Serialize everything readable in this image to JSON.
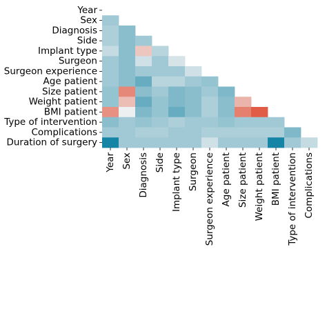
{
  "chart_data": {
    "type": "heatmap",
    "title": "",
    "xlabel": "",
    "ylabel": "",
    "mask": "upper-triangle",
    "row_labels": [
      "Year",
      "Sex",
      "Diagnosis",
      "Side",
      "Implant type",
      "Surgeon",
      "Surgeon experience",
      "Age patient",
      "Size patient",
      "Weight patient",
      "BMI patient",
      "Type of intervention",
      "Complications",
      "Duration of surgery"
    ],
    "col_labels": [
      "Year",
      "Sex",
      "Diagnosis",
      "Side",
      "Implant type",
      "Surgeon",
      "Surgeon experience",
      "Age patient",
      "Size patient",
      "Weight patient",
      "BMI patient",
      "Type of intervention",
      "Complications"
    ],
    "color_scale": {
      "negative": "#0a7ea0",
      "zero": "#f2f2f2",
      "positive": "#de4228",
      "range": [
        -1,
        1
      ]
    },
    "matrix": [
      [],
      [
        -0.35
      ],
      [
        -0.3,
        -0.45
      ],
      [
        -0.3,
        -0.45,
        -0.35
      ],
      [
        -0.2,
        -0.45,
        0.25,
        -0.25
      ],
      [
        -0.35,
        -0.45,
        -0.15,
        -0.35,
        -0.12
      ],
      [
        -0.35,
        -0.45,
        -0.35,
        -0.35,
        -0.35,
        -0.15
      ],
      [
        -0.35,
        -0.45,
        -0.6,
        -0.25,
        -0.25,
        -0.35,
        -0.4
      ],
      [
        -0.4,
        0.6,
        -0.45,
        -0.35,
        -0.5,
        -0.45,
        -0.35,
        -0.5
      ],
      [
        -0.4,
        0.3,
        -0.6,
        -0.4,
        -0.5,
        -0.45,
        -0.3,
        -0.45,
        0.35
      ],
      [
        0.55,
        -0.02,
        -0.5,
        -0.4,
        -0.6,
        -0.45,
        -0.3,
        -0.45,
        0.65,
        0.85
      ],
      [
        -0.45,
        -0.35,
        -0.4,
        -0.35,
        -0.3,
        -0.35,
        -0.35,
        -0.4,
        -0.35,
        -0.35,
        -0.35
      ],
      [
        -0.35,
        -0.35,
        -0.3,
        -0.3,
        -0.35,
        -0.35,
        -0.3,
        -0.3,
        -0.3,
        -0.3,
        -0.3,
        -0.5
      ],
      [
        -0.95,
        -0.35,
        -0.35,
        -0.35,
        -0.35,
        -0.35,
        -0.15,
        -0.35,
        -0.35,
        -0.35,
        -0.95,
        -0.35,
        -0.2
      ]
    ]
  }
}
